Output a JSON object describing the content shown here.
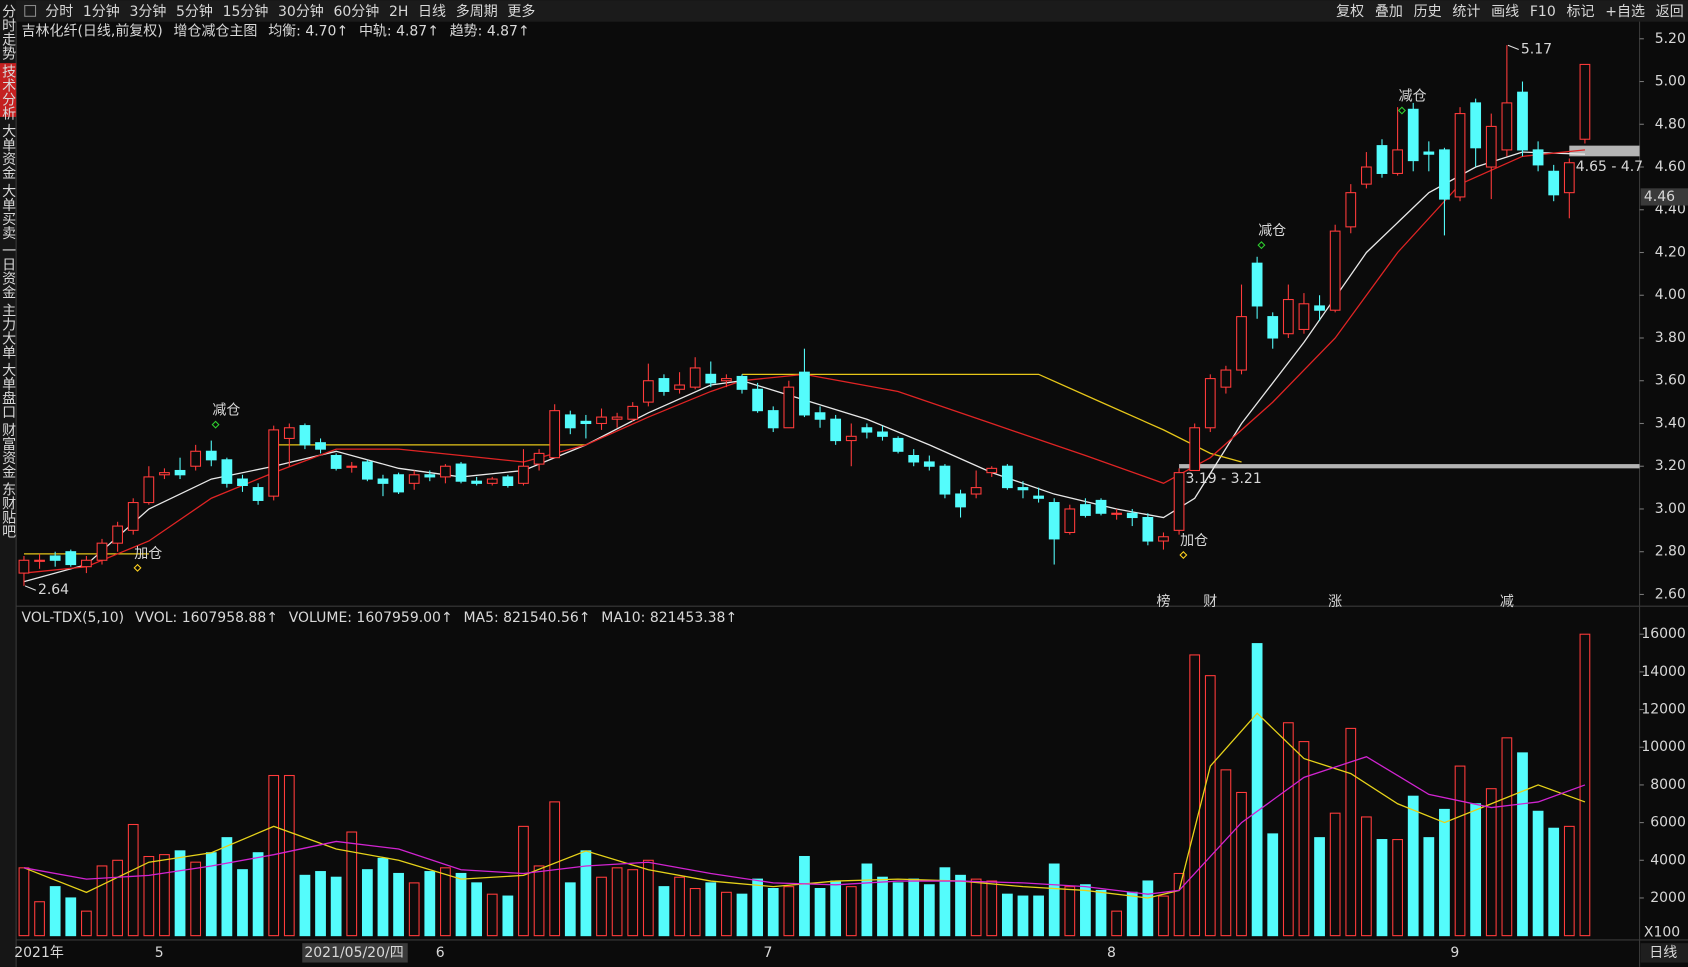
{
  "toolbar": {
    "left": [
      "分时",
      "1分钟",
      "3分钟",
      "5分钟",
      "15分钟",
      "30分钟",
      "60分钟",
      "2H",
      "日线",
      "多周期",
      "更多"
    ],
    "selected": 8,
    "right": [
      "复权",
      "叠加",
      "历史",
      "统计",
      "画线",
      "F10",
      "标记",
      "+自选",
      "返回"
    ]
  },
  "sidebar": {
    "items": [
      "分时走势",
      "技术分析",
      "大单资金",
      "大单买卖",
      "一日资金",
      "主力大单",
      "大单盘口",
      "财富资金",
      "东财贴吧"
    ],
    "selected": 1
  },
  "chart_data": [
    {
      "type": "candlestick",
      "title": "吉林化纤(日线,前复权)",
      "subtitle": "增仓减仓主图",
      "xlim": [
        -0.5,
        103.5
      ],
      "ylim": [
        2.55,
        5.27
      ],
      "yticks": [
        {
          "value": 2.6,
          "label": "2.60"
        },
        {
          "value": 2.8,
          "label": "2.80"
        },
        {
          "value": 3.0,
          "label": "3.00"
        },
        {
          "value": 3.2,
          "label": "3.20"
        },
        {
          "value": 3.4,
          "label": "3.40"
        },
        {
          "value": 3.6,
          "label": "3.60"
        },
        {
          "value": 3.8,
          "label": "3.80"
        },
        {
          "value": 4.0,
          "label": "4.00"
        },
        {
          "value": 4.2,
          "label": "4.20"
        },
        {
          "value": 4.4,
          "label": "4.40"
        },
        {
          "value": 4.6,
          "label": "4.60"
        },
        {
          "value": 4.8,
          "label": "4.80"
        },
        {
          "value": 5.0,
          "label": "5.00"
        },
        {
          "value": 5.2,
          "label": "5.20"
        }
      ],
      "up_color": "#ff3b3b",
      "down_color": "#54fcfc",
      "open": [
        2.7,
        2.76,
        2.78,
        2.8,
        2.73,
        2.76,
        2.84,
        2.9,
        3.03,
        3.16,
        3.18,
        3.2,
        3.27,
        3.23,
        3.14,
        3.1,
        3.06,
        3.33,
        3.39,
        3.31,
        3.25,
        3.2,
        3.22,
        3.14,
        3.16,
        3.12,
        3.16,
        3.15,
        3.21,
        3.13,
        3.12,
        3.15,
        3.12,
        3.21,
        3.24,
        3.44,
        3.41,
        3.4,
        3.42,
        3.42,
        3.5,
        3.61,
        3.56,
        3.57,
        3.63,
        3.6,
        3.62,
        3.56,
        3.46,
        3.38,
        3.64,
        3.45,
        3.42,
        3.32,
        3.38,
        3.36,
        3.33,
        3.25,
        3.22,
        3.2,
        3.07,
        3.07,
        3.17,
        3.2,
        3.1,
        3.06,
        3.03,
        2.89,
        3.02,
        3.04,
        2.98,
        2.98,
        2.96,
        2.85,
        2.9,
        3.18,
        3.38,
        3.57,
        3.65,
        4.15,
        3.9,
        3.82,
        3.84,
        3.95,
        3.93,
        4.32,
        4.52,
        4.7,
        4.57,
        4.87,
        4.67,
        4.68,
        4.46,
        4.9,
        4.6,
        4.68,
        4.95,
        4.68,
        4.58,
        4.48,
        4.73
      ],
      "high": [
        2.78,
        2.79,
        2.8,
        2.81,
        2.78,
        2.86,
        2.94,
        3.05,
        3.2,
        3.19,
        3.24,
        3.3,
        3.32,
        3.24,
        3.16,
        3.12,
        3.39,
        3.4,
        3.4,
        3.33,
        3.26,
        3.22,
        3.23,
        3.16,
        3.17,
        3.18,
        3.18,
        3.21,
        3.22,
        3.15,
        3.15,
        3.16,
        3.28,
        3.28,
        3.49,
        3.46,
        3.44,
        3.47,
        3.45,
        3.5,
        3.68,
        3.63,
        3.64,
        3.71,
        3.69,
        3.63,
        3.63,
        3.59,
        3.48,
        3.6,
        3.75,
        3.48,
        3.44,
        3.4,
        3.4,
        3.39,
        3.34,
        3.28,
        3.25,
        3.21,
        3.09,
        3.18,
        3.2,
        3.21,
        3.13,
        3.1,
        3.05,
        3.02,
        3.05,
        3.05,
        3.0,
        3.0,
        2.98,
        2.89,
        3.19,
        3.4,
        3.63,
        3.67,
        4.05,
        4.18,
        3.92,
        4.05,
        4.01,
        4.0,
        4.33,
        4.52,
        4.67,
        4.73,
        4.88,
        4.9,
        4.72,
        4.69,
        4.88,
        4.92,
        4.85,
        5.17,
        5.0,
        4.72,
        4.61,
        4.64,
        5.08
      ],
      "low": [
        2.64,
        2.72,
        2.73,
        2.73,
        2.7,
        2.74,
        2.8,
        2.88,
        3.02,
        3.14,
        3.14,
        3.18,
        3.2,
        3.1,
        3.08,
        3.02,
        3.04,
        3.2,
        3.28,
        3.26,
        3.18,
        3.17,
        3.13,
        3.06,
        3.07,
        3.09,
        3.13,
        3.12,
        3.12,
        3.11,
        3.11,
        3.1,
        3.11,
        3.18,
        3.24,
        3.35,
        3.33,
        3.37,
        3.38,
        3.41,
        3.48,
        3.53,
        3.54,
        3.56,
        3.57,
        3.57,
        3.54,
        3.45,
        3.36,
        3.38,
        3.43,
        3.38,
        3.3,
        3.2,
        3.33,
        3.32,
        3.26,
        3.2,
        3.18,
        3.05,
        2.96,
        3.05,
        3.15,
        3.09,
        3.05,
        3.03,
        2.74,
        2.88,
        2.96,
        2.97,
        2.95,
        2.92,
        2.83,
        2.81,
        2.88,
        3.18,
        3.36,
        3.54,
        3.63,
        3.89,
        3.75,
        3.8,
        3.82,
        3.88,
        3.92,
        4.29,
        4.5,
        4.55,
        4.56,
        4.58,
        4.58,
        4.28,
        4.44,
        4.6,
        4.45,
        4.65,
        4.65,
        4.58,
        4.44,
        4.36,
        4.71
      ],
      "close": [
        2.76,
        2.76,
        2.76,
        2.74,
        2.76,
        2.84,
        2.92,
        3.03,
        3.15,
        3.17,
        3.16,
        3.27,
        3.23,
        3.12,
        3.11,
        3.04,
        3.37,
        3.38,
        3.3,
        3.28,
        3.19,
        3.2,
        3.14,
        3.12,
        3.08,
        3.16,
        3.15,
        3.2,
        3.13,
        3.12,
        3.14,
        3.11,
        3.2,
        3.26,
        3.46,
        3.38,
        3.4,
        3.43,
        3.43,
        3.48,
        3.6,
        3.55,
        3.58,
        3.66,
        3.59,
        3.61,
        3.56,
        3.46,
        3.38,
        3.57,
        3.44,
        3.42,
        3.32,
        3.34,
        3.36,
        3.34,
        3.27,
        3.22,
        3.2,
        3.07,
        3.01,
        3.1,
        3.19,
        3.1,
        3.09,
        3.05,
        2.86,
        3.0,
        2.97,
        2.98,
        2.98,
        2.96,
        2.85,
        2.87,
        3.17,
        3.38,
        3.61,
        3.65,
        3.9,
        3.95,
        3.8,
        3.98,
        3.96,
        3.93,
        4.3,
        4.48,
        4.6,
        4.57,
        4.68,
        4.63,
        4.66,
        4.45,
        4.85,
        4.69,
        4.79,
        4.9,
        4.68,
        4.61,
        4.47,
        4.62,
        5.08
      ],
      "lines": [
        {
          "name": "均衡: 4.70↑",
          "color": "#e8e8e8",
          "x": [
            0,
            4,
            8,
            12,
            16,
            20,
            24,
            28,
            32,
            36,
            40,
            44,
            46,
            50,
            54,
            58,
            62,
            66,
            70,
            73,
            75,
            78,
            82,
            86,
            90,
            93,
            96,
            100
          ],
          "values": [
            2.66,
            2.74,
            3.0,
            3.14,
            3.2,
            3.27,
            3.19,
            3.15,
            3.18,
            3.3,
            3.45,
            3.58,
            3.6,
            3.51,
            3.42,
            3.3,
            3.17,
            3.07,
            3.0,
            2.96,
            3.05,
            3.4,
            3.78,
            4.2,
            4.48,
            4.6,
            4.67,
            4.66
          ]
        },
        {
          "name": "中轨: 4.87↑",
          "color": "#e6c619",
          "x": [
            0,
            8,
            null,
            16,
            36,
            null,
            46,
            65,
            69,
            73,
            76,
            78
          ],
          "values": [
            2.79,
            2.79,
            null,
            3.3,
            3.3,
            null,
            3.63,
            3.63,
            3.5,
            3.37,
            3.26,
            3.22
          ]
        },
        {
          "name": "趋势: 4.87↑",
          "color": "#e02424",
          "x": [
            0,
            4,
            8,
            12,
            16,
            20,
            24,
            28,
            32,
            36,
            40,
            44,
            46,
            50,
            56,
            62,
            68,
            73,
            76,
            80,
            84,
            88,
            92,
            96,
            100
          ],
          "values": [
            2.7,
            2.73,
            2.85,
            3.05,
            3.17,
            3.28,
            3.28,
            3.25,
            3.22,
            3.3,
            3.43,
            3.55,
            3.6,
            3.63,
            3.55,
            3.4,
            3.25,
            3.12,
            3.24,
            3.5,
            3.8,
            4.2,
            4.52,
            4.65,
            4.68
          ]
        }
      ],
      "annotations": [
        {
          "text": "减仓",
          "x": 12,
          "y": 3.46,
          "color": "#2fd12f"
        },
        {
          "text": "加仓",
          "x": 7,
          "y": 2.79,
          "color": "#ffd21f"
        },
        {
          "text": "减仓",
          "x": 79,
          "y": 4.3,
          "color": "#2fd12f"
        },
        {
          "text": "加仓",
          "x": 74,
          "y": 2.85,
          "color": "#ffd21f"
        },
        {
          "text": "减仓",
          "x": 88,
          "y": 4.93,
          "color": "#2fd12f"
        }
      ],
      "ranges": [
        {
          "label": "3.19 - 3.21",
          "low": 3.19,
          "high": 3.21,
          "from": 74
        },
        {
          "label": "4.65 - 4.7",
          "low": 4.65,
          "high": 4.7,
          "from": 99
        }
      ],
      "extremes": [
        {
          "x": 95,
          "value": 5.17
        },
        {
          "x": 0,
          "value": 2.64
        }
      ],
      "last_price": 4.46,
      "events": [
        {
          "x": 73,
          "label": "榜",
          "color": "#e8822a"
        },
        {
          "x": 76,
          "label": "财",
          "color": "#4a8cff"
        },
        {
          "x": 84,
          "label": "涨",
          "color": "#ff4040"
        },
        {
          "x": 95,
          "label": "减",
          "color": "#30c030"
        }
      ]
    },
    {
      "type": "volume",
      "title": "VOL-TDX(5,10)",
      "subtitle": "VVOL: 1607958.88↑",
      "xlim": [
        -0.5,
        103.5
      ],
      "ylim": [
        0,
        16800
      ],
      "yticks": [
        2000,
        4000,
        6000,
        8000,
        10000,
        12000,
        14000,
        16000
      ],
      "unit_label": "X100",
      "series": [
        {
          "name": "VOLUME: 1607959.00↑",
          "color": "#e8a317",
          "values": [
            3600,
            1800,
            2600,
            2000,
            1300,
            3700,
            4000,
            5900,
            4200,
            4300,
            4500,
            3900,
            4400,
            5200,
            3500,
            4400,
            8500,
            8500,
            3200,
            3400,
            3100,
            5500,
            3500,
            4100,
            3300,
            2800,
            3400,
            3600,
            3300,
            2800,
            2200,
            2100,
            5800,
            3700,
            7100,
            2800,
            4500,
            3100,
            3600,
            3500,
            4000,
            2600,
            3100,
            2500,
            2800,
            2300,
            2200,
            3000,
            2500,
            2600,
            4200,
            2500,
            2900,
            2600,
            3800,
            3100,
            2800,
            3000,
            2700,
            3600,
            3200,
            3000,
            2900,
            2200,
            2100,
            2100,
            3800,
            2600,
            2700,
            2400,
            1300,
            2300,
            2900,
            2100,
            3300,
            14900,
            13800,
            8800,
            7600,
            15500,
            5400,
            11300,
            10300,
            5200,
            6500,
            11000,
            6300,
            5100,
            5100,
            7400,
            5200,
            6700,
            9000,
            7000,
            7800,
            10500,
            9700,
            6600,
            5700,
            5800,
            16000
          ]
        }
      ],
      "lines": [
        {
          "name": "MA5: 821540.56↑",
          "color": "#e6d21a",
          "x": [
            0,
            4,
            8,
            12,
            16,
            20,
            24,
            28,
            32,
            36,
            40,
            44,
            48,
            52,
            56,
            60,
            64,
            68,
            72,
            74,
            76,
            79,
            82,
            85,
            88,
            91,
            94,
            97,
            100
          ],
          "values": [
            3600,
            2300,
            3900,
            4400,
            5800,
            4600,
            4000,
            3000,
            3200,
            4500,
            3500,
            2900,
            2600,
            2900,
            3000,
            2900,
            2600,
            2400,
            2000,
            2400,
            9000,
            11800,
            9400,
            8600,
            7000,
            6000,
            7000,
            8000,
            7100
          ]
        },
        {
          "name": "MA10: 821453.38↑",
          "color": "#d124d1",
          "x": [
            0,
            4,
            8,
            12,
            16,
            20,
            24,
            28,
            32,
            36,
            40,
            44,
            48,
            52,
            56,
            60,
            64,
            68,
            72,
            74,
            78,
            82,
            86,
            90,
            94,
            97,
            100
          ],
          "values": [
            3600,
            3000,
            3200,
            3700,
            4300,
            5000,
            4600,
            3500,
            3300,
            3700,
            3900,
            3300,
            2800,
            2700,
            2900,
            2900,
            2800,
            2600,
            2200,
            2400,
            6000,
            8400,
            9500,
            7500,
            6800,
            7100,
            8000
          ]
        }
      ],
      "xticks": [
        {
          "value": 0,
          "label": "2021年"
        },
        {
          "value": 9,
          "label": "5"
        },
        {
          "value": 27,
          "label": "6"
        },
        {
          "value": 48,
          "label": "7"
        },
        {
          "value": 70,
          "label": "8"
        },
        {
          "value": 92,
          "label": "9"
        }
      ],
      "crosshair_date": {
        "value": 19,
        "label": "2021/05/20/四"
      },
      "period_label": "日线"
    }
  ]
}
